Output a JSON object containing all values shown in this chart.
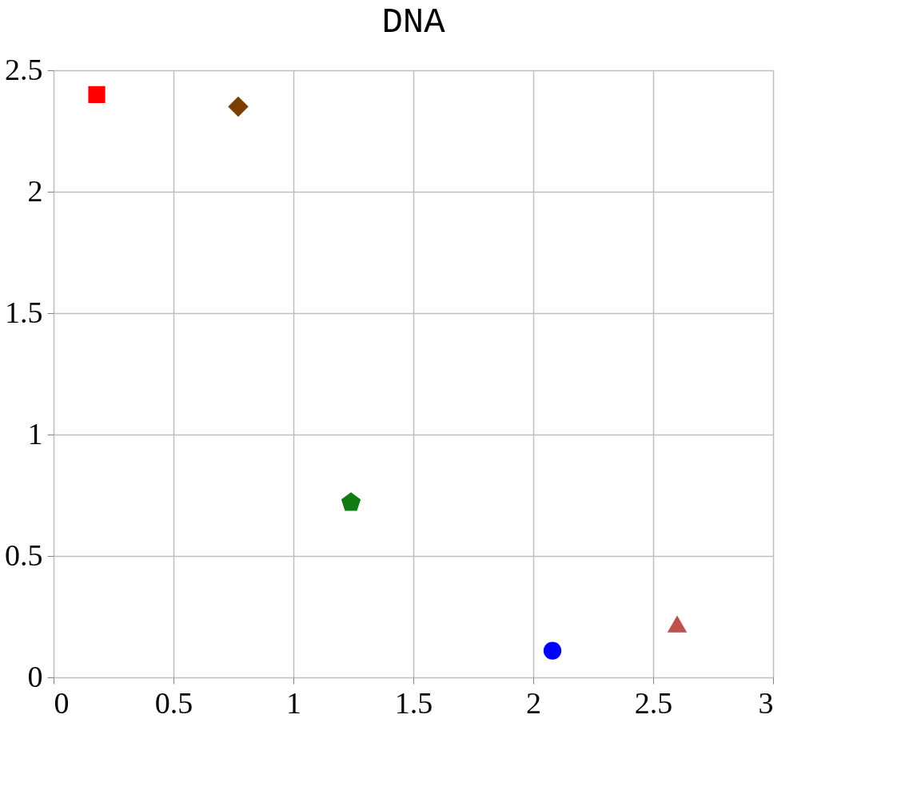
{
  "chart_data": {
    "type": "scatter",
    "title": "DNA",
    "series": [
      {
        "color": "#ff0000",
        "marker": "square",
        "x": [
          0.18
        ],
        "values": [
          2.4
        ]
      },
      {
        "color": "#7a3f00",
        "marker": "diamond",
        "x": [
          0.77
        ],
        "values": [
          2.35
        ]
      },
      {
        "color": "#117a11",
        "x": [
          1.24
        ],
        "values": [
          0.72
        ]
      },
      {
        "color": "#0000ff",
        "marker": "circle",
        "x": [
          2.08
        ],
        "values": [
          0.11
        ]
      },
      {
        "color": "#c0504d",
        "marker": "triangle",
        "x": [
          2.6
        ],
        "values": [
          0.22
        ]
      }
    ],
    "xlim": [
      0,
      3
    ],
    "xticks": [
      0,
      0.5,
      1,
      1.5,
      2,
      2.5,
      3
    ],
    "ylim": [
      0,
      2.5
    ],
    "yticks": [
      0,
      0.5,
      1,
      1.5,
      2,
      2.5
    ],
    "grid": true
  }
}
